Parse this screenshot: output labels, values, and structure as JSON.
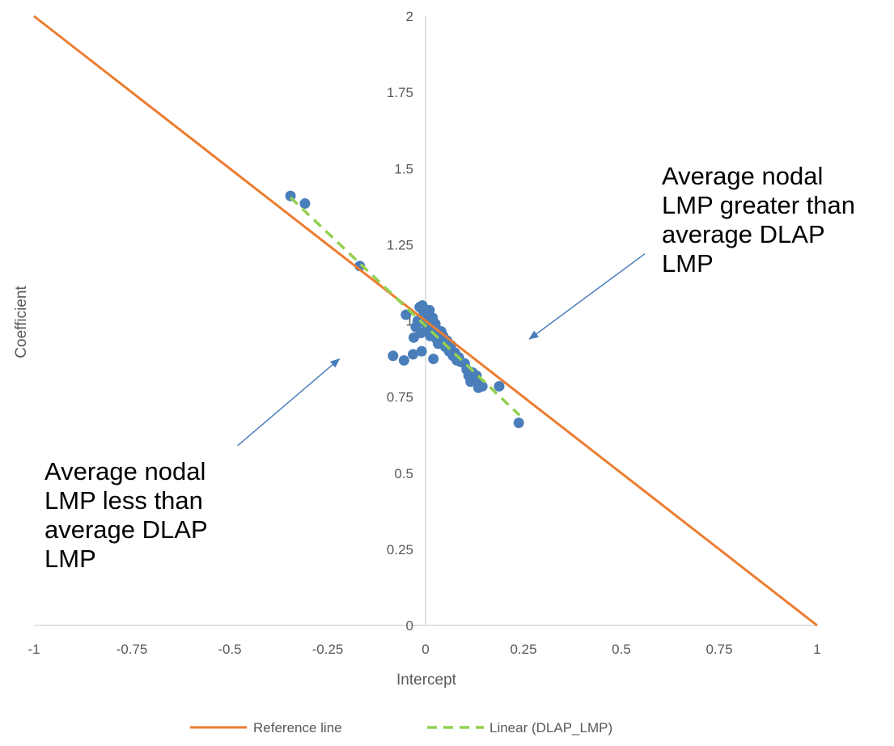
{
  "chart_data": {
    "type": "scatter",
    "xlabel": "Intercept",
    "ylabel": "Coefficient",
    "xlim": [
      -1,
      1
    ],
    "ylim": [
      0,
      2
    ],
    "x_ticks": [
      "-1",
      "-0.75",
      "-0.5",
      "-0.25",
      "0",
      "0.25",
      "0.5",
      "0.75",
      "1"
    ],
    "y_ticks": [
      "0",
      "0.25",
      "0.5",
      "0.75",
      "1",
      "1.25",
      "1.5",
      "1.75",
      "2"
    ],
    "gridlines": false,
    "legend_position": "bottom",
    "colors": {
      "points": "#4a7ebb",
      "reference_line": "#ed7d31",
      "trendline": "#92d050",
      "axis": "#d9d9d9",
      "text": "#595959"
    },
    "series": [
      {
        "type": "scatter",
        "points": [
          [
            -0.345,
            1.41
          ],
          [
            -0.308,
            1.385
          ],
          [
            -0.168,
            1.18
          ],
          [
            -0.083,
            0.885
          ],
          [
            -0.055,
            0.87
          ],
          [
            -0.05,
            1.02
          ],
          [
            -0.032,
            0.89
          ],
          [
            -0.03,
            0.945
          ],
          [
            -0.025,
            0.98
          ],
          [
            -0.02,
            1.0
          ],
          [
            -0.015,
            1.045
          ],
          [
            -0.012,
            0.96
          ],
          [
            -0.01,
            0.9
          ],
          [
            -0.008,
            1.05
          ],
          [
            -0.005,
            1.03
          ],
          [
            0.0,
            0.99
          ],
          [
            0.002,
            1.02
          ],
          [
            0.005,
            0.97
          ],
          [
            0.008,
            1.0
          ],
          [
            0.01,
            1.035
          ],
          [
            0.012,
            0.95
          ],
          [
            0.015,
            0.98
          ],
          [
            0.018,
            1.01
          ],
          [
            0.02,
            0.875
          ],
          [
            0.022,
            0.96
          ],
          [
            0.025,
            0.99
          ],
          [
            0.028,
            0.94
          ],
          [
            0.03,
            0.97
          ],
          [
            0.032,
            0.925
          ],
          [
            0.035,
            0.955
          ],
          [
            0.038,
            0.94
          ],
          [
            0.04,
            0.965
          ],
          [
            0.042,
            0.93
          ],
          [
            0.045,
            0.95
          ],
          [
            0.05,
            0.915
          ],
          [
            0.055,
            0.935
          ],
          [
            0.06,
            0.9
          ],
          [
            0.065,
            0.92
          ],
          [
            0.07,
            0.885
          ],
          [
            0.075,
            0.895
          ],
          [
            0.08,
            0.87
          ],
          [
            0.085,
            0.88
          ],
          [
            0.09,
            0.865
          ],
          [
            0.1,
            0.86
          ],
          [
            0.105,
            0.84
          ],
          [
            0.11,
            0.82
          ],
          [
            0.115,
            0.8
          ],
          [
            0.12,
            0.83
          ],
          [
            0.125,
            0.81
          ],
          [
            0.13,
            0.82
          ],
          [
            0.135,
            0.78
          ],
          [
            0.14,
            0.795
          ],
          [
            0.145,
            0.785
          ],
          [
            0.188,
            0.785
          ],
          [
            0.238,
            0.665
          ]
        ]
      },
      {
        "name": "Reference line",
        "type": "line",
        "x": [
          -1,
          1
        ],
        "y": [
          2,
          0
        ]
      },
      {
        "name": "Linear (DLAP_LMP)",
        "type": "trendline",
        "style": "dashed",
        "x": [
          -0.345,
          0.24
        ],
        "y": [
          1.405,
          0.69
        ]
      }
    ],
    "annotations": [
      {
        "lines": [
          "Average nodal",
          "LMP greater than",
          "average DLAP",
          "LMP"
        ],
        "arrow_from": [
          0.56,
          1.22
        ],
        "arrow_to": [
          0.265,
          0.94
        ]
      },
      {
        "lines": [
          "Average nodal",
          "LMP less than",
          "average DLAP",
          "LMP"
        ],
        "arrow_from": [
          -0.48,
          0.59
        ],
        "arrow_to": [
          -0.22,
          0.875
        ]
      }
    ]
  }
}
